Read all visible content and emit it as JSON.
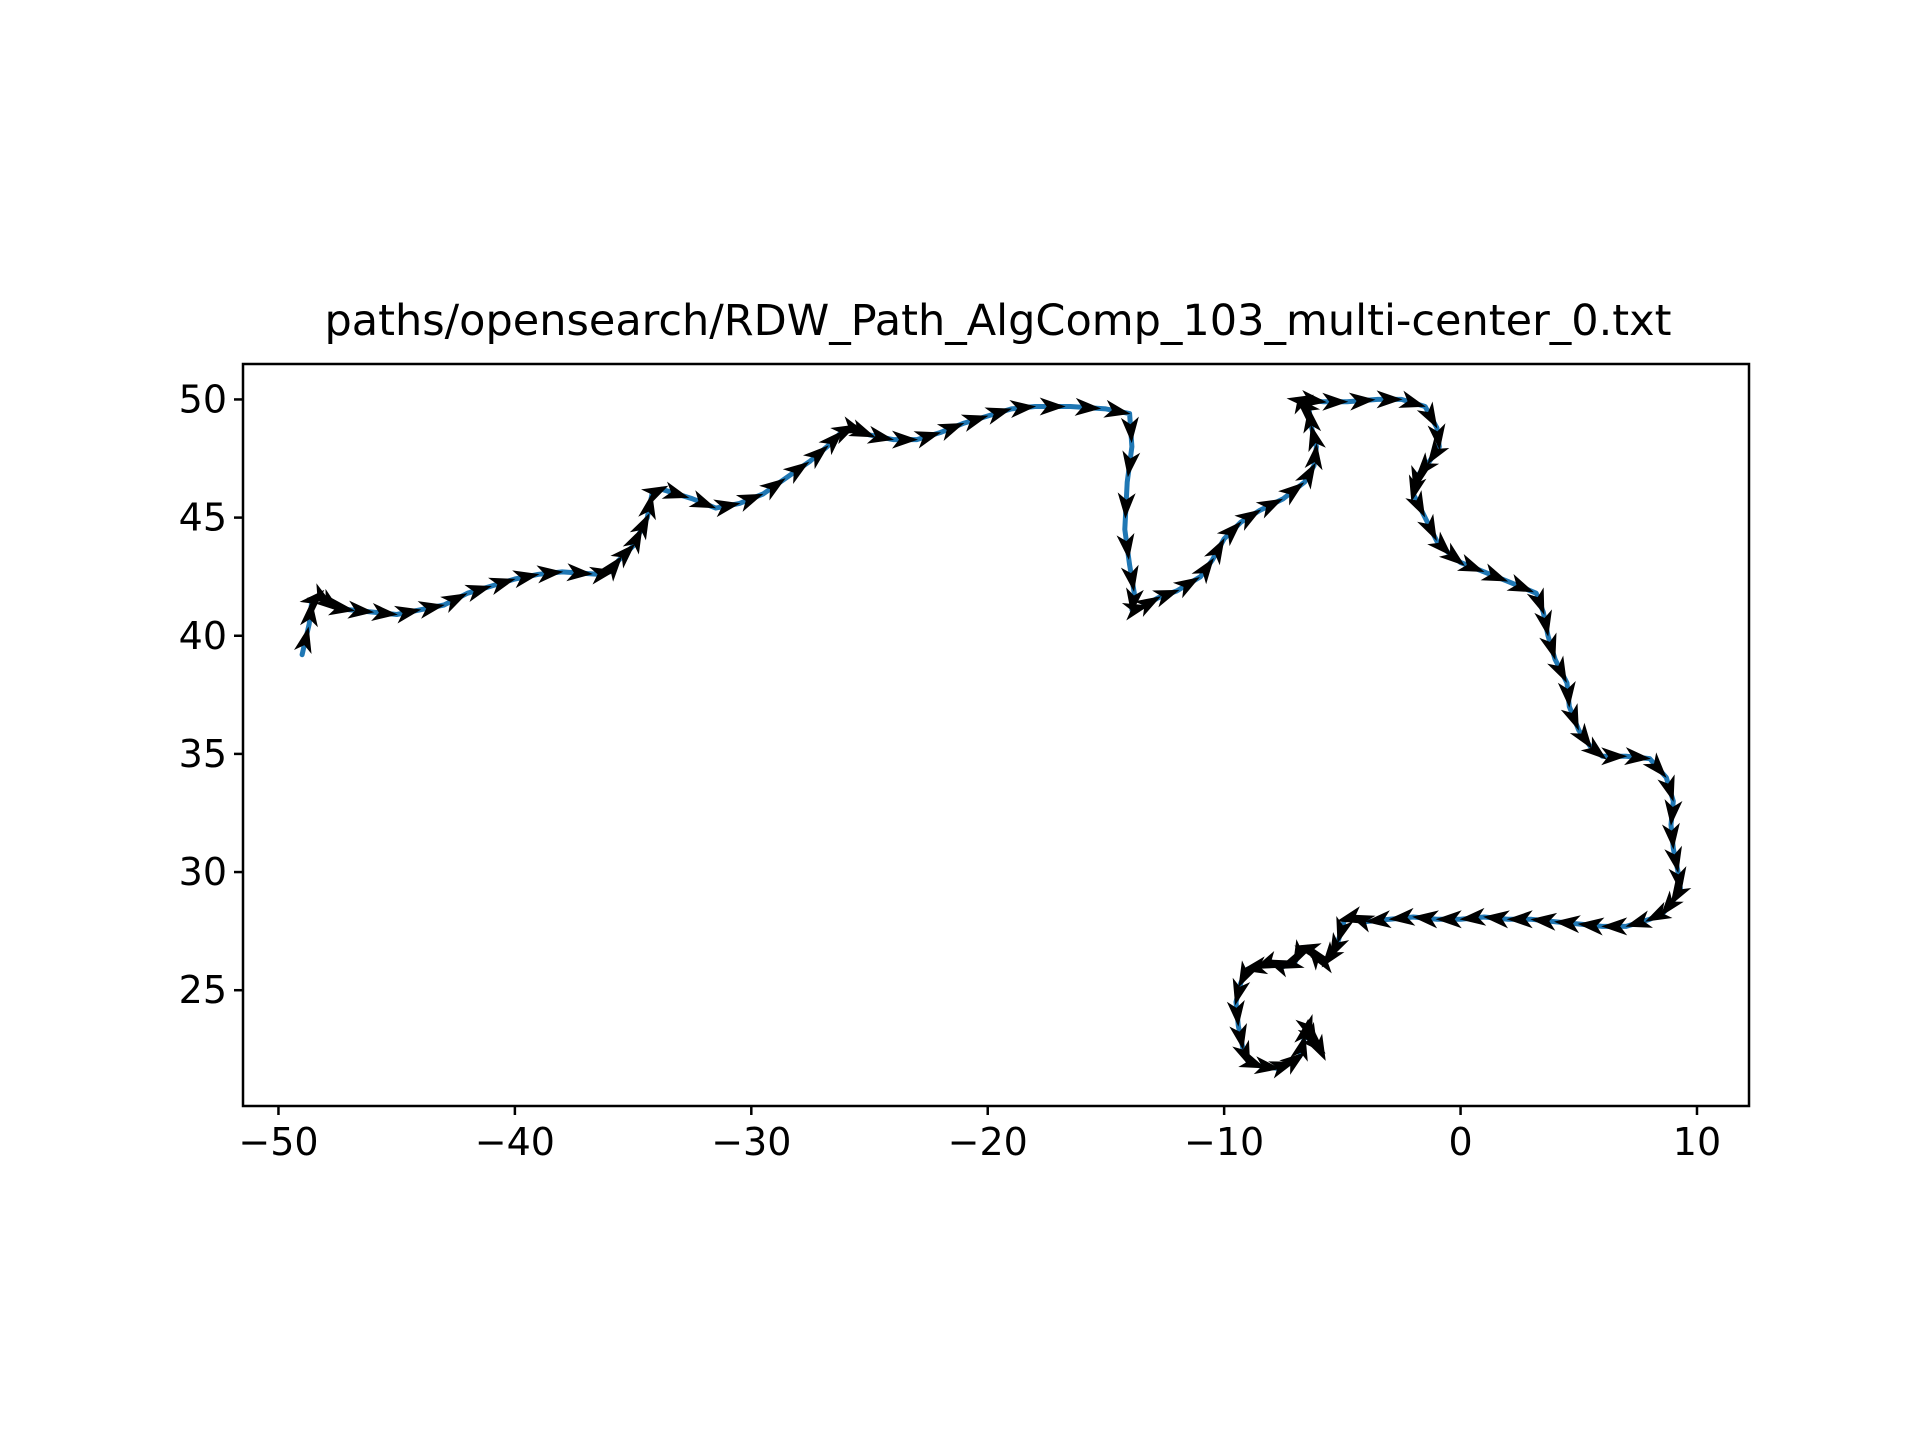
{
  "chart_data": {
    "type": "line",
    "title": "paths/opensearch/RDW_Path_AlgComp_103_multi-center_0.txt",
    "xlabel": "",
    "ylabel": "",
    "xlim": [
      -51.5,
      12.2
    ],
    "ylim": [
      20.1,
      51.5
    ],
    "xticks": [
      -50,
      -40,
      -30,
      -20,
      -10,
      0,
      10
    ],
    "xtick_labels": [
      "−50",
      "−40",
      "−30",
      "−20",
      "−10",
      "0",
      "10"
    ],
    "yticks": [
      25,
      30,
      35,
      40,
      45,
      50
    ],
    "ytick_labels": [
      "25",
      "30",
      "35",
      "40",
      "45",
      "50"
    ],
    "grid": false,
    "legend": "none",
    "line_color": "#1f77b4",
    "arrow_color": "#000000",
    "series": [
      {
        "x": [
          -49.0,
          -48.7,
          -48.6,
          -48.3,
          -48.0,
          -47.6,
          -47.0,
          -46.0,
          -45.0,
          -44.0,
          -43.0,
          -42.0,
          -41.0,
          -40.0,
          -39.0,
          -38.0,
          -36.5,
          -36.0,
          -35.6,
          -35.0,
          -34.7,
          -34.4,
          -34.2,
          -33.8,
          -32.5,
          -31.5,
          -30.5,
          -29.5,
          -28.5,
          -27.5,
          -26.8,
          -26.2,
          -25.8,
          -25.5,
          -25.0,
          -24.0,
          -23.0,
          -22.0,
          -21.0,
          -20.0,
          -19.0,
          -18.0,
          -16.5,
          -15.0,
          -14.0,
          -13.9,
          -14.1,
          -14.2,
          -14.0,
          -13.8,
          -13.9,
          -13.5,
          -12.8,
          -12.0,
          -11.0,
          -10.5,
          -10.0,
          -9.3,
          -8.5,
          -7.5,
          -6.6,
          -6.2,
          -6.1,
          -6.3,
          -6.4,
          -6.8,
          -6.6,
          -5.8,
          -4.8,
          -3.5,
          -2.5,
          -1.5,
          -1.0,
          -0.9,
          -1.3,
          -1.8,
          -1.9,
          -2.0,
          -1.5,
          -1.0,
          -0.5,
          0.0,
          1.0,
          2.0,
          3.2,
          3.5,
          3.7,
          4.0,
          4.5,
          4.6,
          5.0,
          5.5,
          6.0,
          7.0,
          8.0,
          8.7,
          9.0,
          8.9,
          9.0,
          9.2,
          9.3,
          9.0,
          8.6,
          8.0,
          7.0,
          6.0,
          5.0,
          4.0,
          3.0,
          2.0,
          1.0,
          0.0,
          -1.0,
          -2.0,
          -3.0,
          -4.0,
          -4.5,
          -4.9,
          -5.2,
          -5.4,
          -5.7,
          -6.0,
          -6.3,
          -6.7,
          -7.0,
          -7.5,
          -8.0,
          -8.5,
          -9.0,
          -9.3,
          -9.5,
          -9.4,
          -9.2,
          -9.0,
          -8.5,
          -7.8,
          -7.2,
          -6.8,
          -6.6,
          -6.5,
          -6.4,
          -6.2,
          -6.0,
          -5.9
        ],
        "y": [
          39.2,
          40.5,
          41.4,
          41.7,
          41.5,
          41.2,
          41.1,
          41.0,
          40.9,
          41.1,
          41.3,
          41.8,
          42.1,
          42.4,
          42.6,
          42.7,
          42.6,
          42.7,
          43.2,
          43.8,
          44.4,
          45.0,
          46.0,
          46.2,
          45.8,
          45.4,
          45.6,
          46.0,
          46.7,
          47.4,
          48.0,
          48.6,
          48.8,
          48.7,
          48.5,
          48.3,
          48.3,
          48.6,
          49.0,
          49.3,
          49.6,
          49.7,
          49.7,
          49.6,
          49.4,
          48.0,
          46.5,
          44.5,
          43.0,
          41.8,
          41.1,
          41.2,
          41.6,
          41.9,
          42.5,
          43.2,
          44.1,
          44.8,
          45.3,
          45.8,
          46.5,
          47.2,
          48.0,
          48.8,
          49.5,
          49.9,
          50.0,
          49.9,
          49.9,
          50.0,
          50.0,
          49.7,
          48.8,
          48.0,
          47.4,
          46.8,
          46.4,
          46.0,
          45.0,
          44.0,
          43.5,
          43.1,
          42.7,
          42.3,
          41.8,
          41.0,
          40.0,
          39.0,
          38.0,
          37.0,
          36.0,
          35.3,
          34.9,
          34.9,
          34.8,
          34.0,
          33.0,
          32.0,
          31.0,
          30.0,
          29.3,
          28.8,
          28.3,
          28.0,
          27.7,
          27.7,
          27.8,
          27.9,
          28.0,
          28.0,
          28.1,
          28.0,
          28.0,
          28.1,
          28.0,
          27.9,
          28.1,
          28.0,
          27.0,
          26.6,
          26.2,
          26.3,
          26.7,
          26.8,
          26.2,
          26.0,
          26.2,
          26.0,
          25.9,
          25.3,
          24.5,
          23.5,
          22.5,
          22.0,
          21.8,
          21.7,
          21.9,
          22.2,
          23.0,
          23.5,
          23.2,
          22.8,
          22.6,
          22.4
        ]
      }
    ]
  }
}
